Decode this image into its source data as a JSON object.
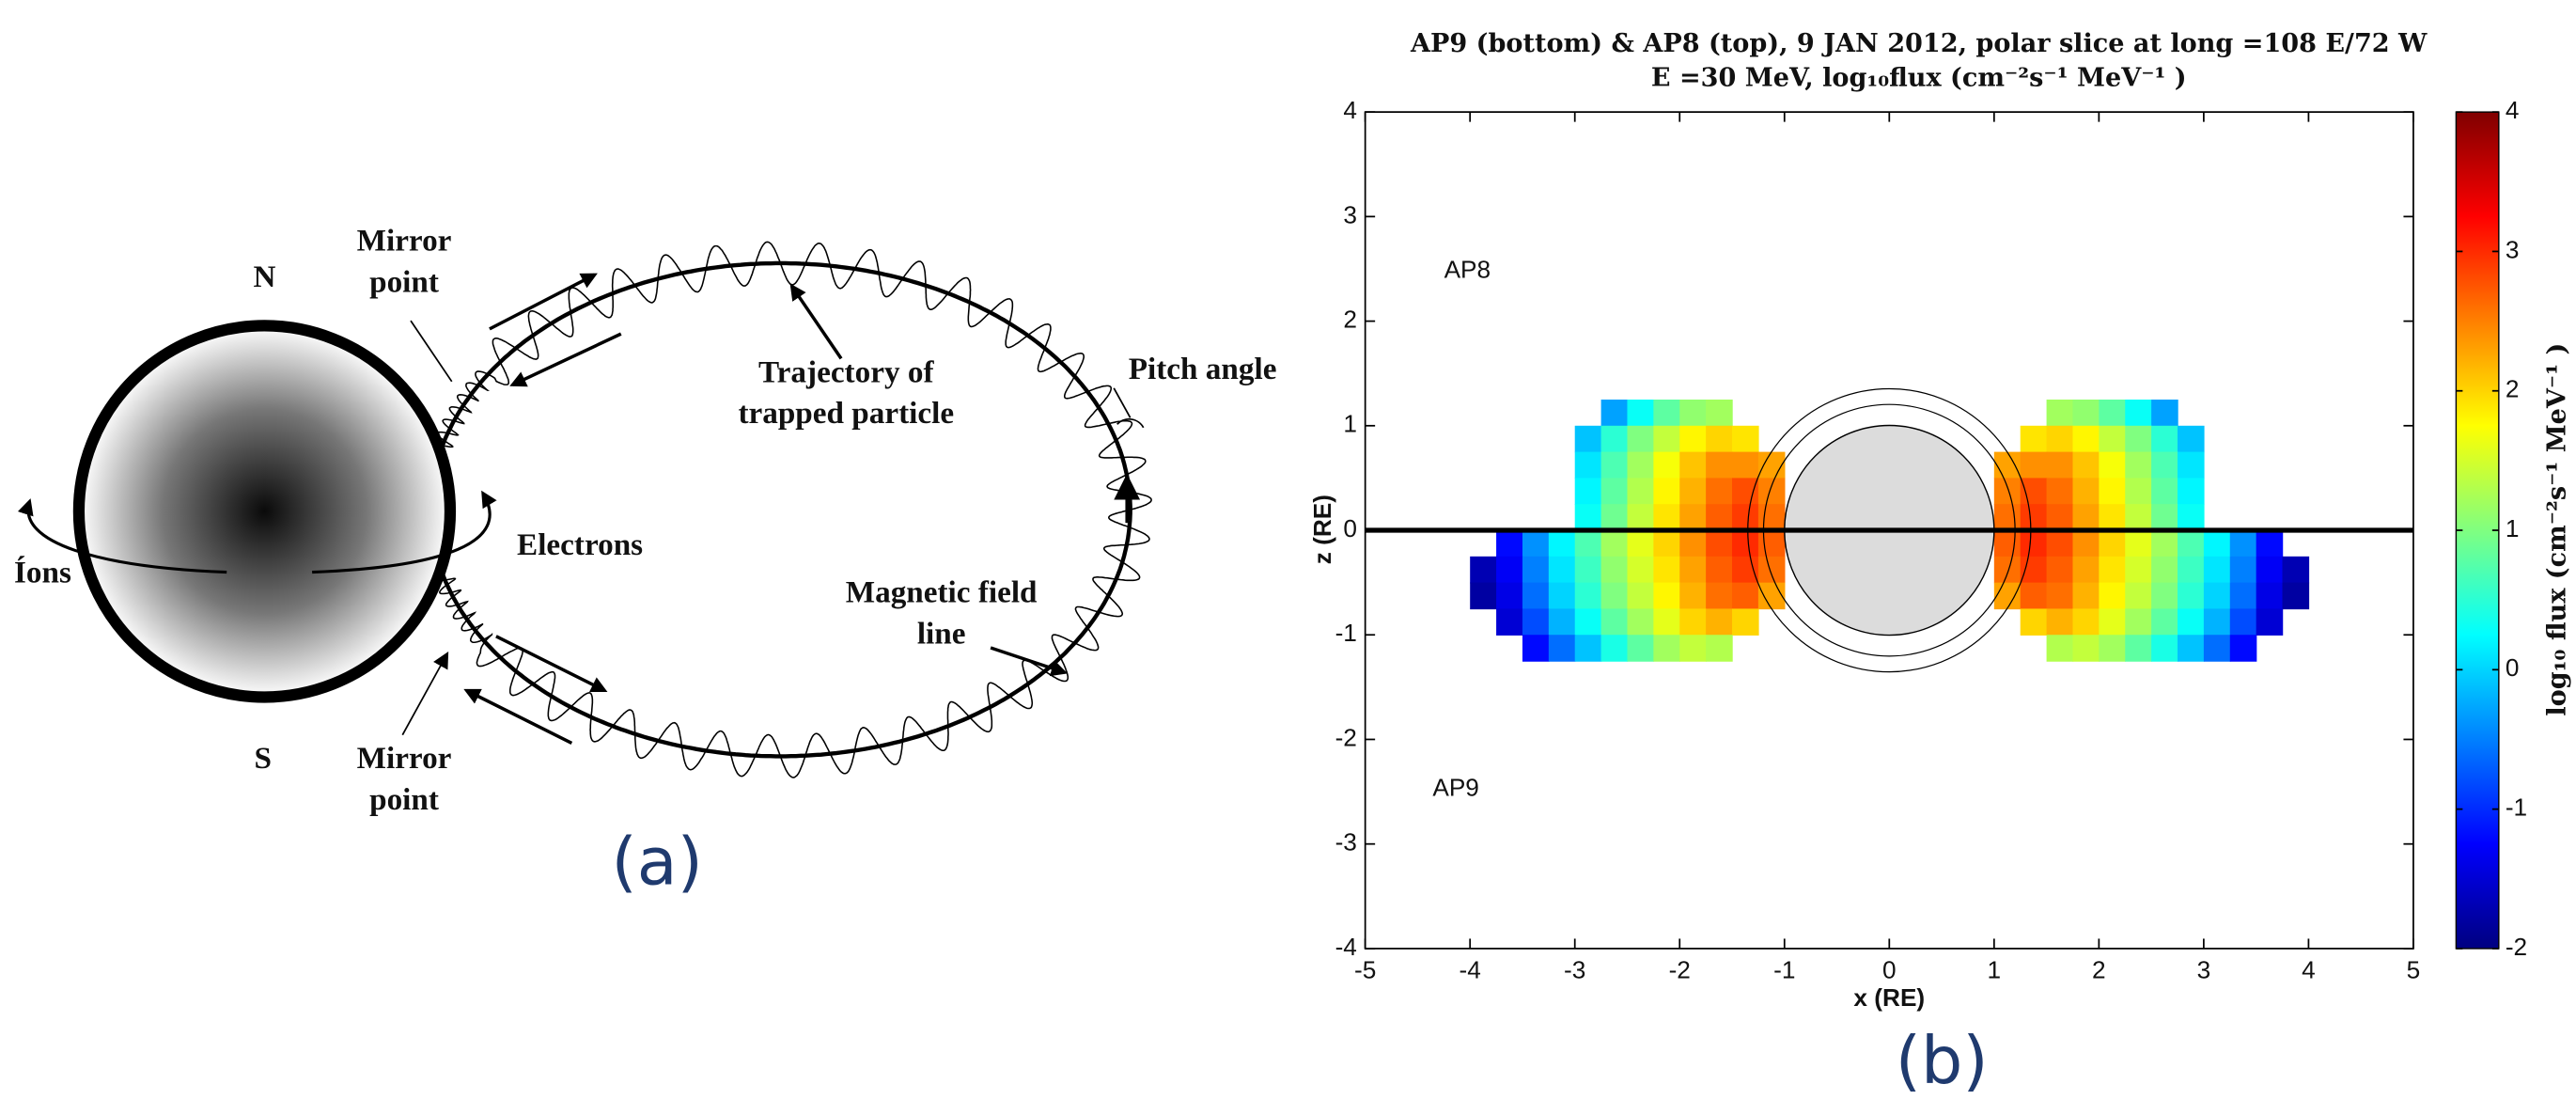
{
  "diagram": {
    "north": "N",
    "south": "S",
    "mirror_top": [
      "Mirror",
      "point"
    ],
    "mirror_bottom": [
      "Mirror",
      "point"
    ],
    "trajectory": [
      "Trajectory of",
      "trapped particle"
    ],
    "pitch_angle": "Pitch angle",
    "electrons": "Electrons",
    "ions": "Íons",
    "field_line": [
      "Magnetic field",
      "line"
    ],
    "panel_label": "(a)"
  },
  "chart_data": {
    "type": "heatmap",
    "title": [
      "AP9 (bottom) & AP8 (top), 9 JAN 2012, polar  slice at long =108 E/72 W",
      "E =30 MeV, log₁₀flux (cm⁻²s⁻¹ MeV⁻¹ )"
    ],
    "xlabel": "x (RE)",
    "ylabel": "z (RE)",
    "colorbar_label": "log₁₀ flux (cm⁻²s⁻¹ MeV⁻¹ )",
    "annotations": [
      "AP8",
      "AP9"
    ],
    "panel_label": "(b)",
    "colormap": "jet",
    "xlim": [
      -5,
      5
    ],
    "xticks": [
      -5,
      -4,
      -3,
      -2,
      -1,
      0,
      1,
      2,
      3,
      4,
      5
    ],
    "ylim": [
      -4,
      4
    ],
    "yticks": [
      -4,
      -3,
      -2,
      -1,
      0,
      1,
      2,
      3,
      4
    ],
    "clim": [
      -2,
      4
    ],
    "cticks": [
      -2,
      -1,
      0,
      1,
      2,
      3,
      4
    ],
    "x": [
      -3.875,
      -3.625,
      -3.375,
      -3.125,
      -2.875,
      -2.625,
      -2.375,
      -2.125,
      -1.875,
      -1.625,
      -1.375,
      -1.125,
      1.125,
      1.375,
      1.625,
      1.875,
      2.125,
      2.375,
      2.625,
      2.875,
      3.125,
      3.375,
      3.625,
      3.875
    ],
    "y": [
      1.125,
      0.875,
      0.625,
      0.375,
      0.125,
      -0.125,
      -0.375,
      -0.625,
      -0.875,
      -1.125
    ],
    "values": [
      [
        null,
        null,
        null,
        null,
        null,
        -0.3,
        0.3,
        0.8,
        1.1,
        1.2,
        null,
        null,
        null,
        null,
        1.2,
        1.1,
        0.8,
        0.3,
        -0.3,
        null,
        null,
        null,
        null,
        null
      ],
      [
        null,
        null,
        null,
        null,
        -0.1,
        0.5,
        1.0,
        1.4,
        1.8,
        2.0,
        1.9,
        null,
        null,
        1.9,
        2.0,
        1.8,
        1.4,
        1.0,
        0.5,
        -0.1,
        null,
        null,
        null,
        null
      ],
      [
        null,
        null,
        null,
        null,
        0.1,
        0.7,
        1.2,
        1.7,
        2.1,
        2.4,
        2.4,
        2.3,
        2.3,
        2.4,
        2.4,
        2.1,
        1.7,
        1.2,
        0.7,
        0.1,
        null,
        null,
        null,
        null
      ],
      [
        null,
        null,
        null,
        null,
        0.2,
        0.8,
        1.3,
        1.8,
        2.2,
        2.6,
        2.8,
        2.5,
        2.5,
        2.8,
        2.6,
        2.2,
        1.8,
        1.3,
        0.8,
        0.2,
        null,
        null,
        null,
        null
      ],
      [
        null,
        null,
        null,
        null,
        0.3,
        0.9,
        1.4,
        1.9,
        2.3,
        2.7,
        2.9,
        2.6,
        2.6,
        2.9,
        2.7,
        2.3,
        1.9,
        1.4,
        0.9,
        0.3,
        null,
        null,
        null,
        null
      ],
      [
        null,
        -1.2,
        -0.4,
        0.2,
        0.7,
        1.2,
        1.6,
        2.0,
        2.4,
        2.8,
        3.0,
        2.7,
        2.7,
        3.0,
        2.8,
        2.4,
        2.0,
        1.6,
        1.2,
        0.7,
        0.2,
        -0.4,
        -1.2,
        null
      ],
      [
        -1.7,
        -1.3,
        -0.5,
        0.1,
        0.6,
        1.1,
        1.5,
        1.9,
        2.3,
        2.7,
        2.9,
        2.6,
        2.6,
        2.9,
        2.7,
        2.3,
        1.9,
        1.5,
        1.1,
        0.6,
        0.1,
        -0.5,
        -1.3,
        -1.7
      ],
      [
        -1.8,
        -1.4,
        -0.6,
        0.0,
        0.5,
        1.0,
        1.4,
        1.8,
        2.2,
        2.6,
        2.7,
        2.3,
        2.3,
        2.7,
        2.6,
        2.2,
        1.8,
        1.4,
        1.0,
        0.5,
        0.0,
        -0.6,
        -1.4,
        -1.8
      ],
      [
        null,
        -1.5,
        -0.8,
        -0.2,
        0.3,
        0.8,
        1.2,
        1.6,
        2.0,
        2.2,
        2.0,
        null,
        null,
        2.0,
        2.2,
        2.0,
        1.6,
        1.2,
        0.8,
        0.3,
        -0.2,
        -0.8,
        -1.5,
        null
      ],
      [
        null,
        null,
        -1.2,
        -0.6,
        -0.1,
        0.4,
        0.8,
        1.2,
        1.4,
        1.3,
        null,
        null,
        null,
        null,
        1.3,
        1.4,
        1.2,
        0.8,
        0.4,
        -0.1,
        -0.6,
        -1.2,
        null,
        null
      ]
    ]
  }
}
